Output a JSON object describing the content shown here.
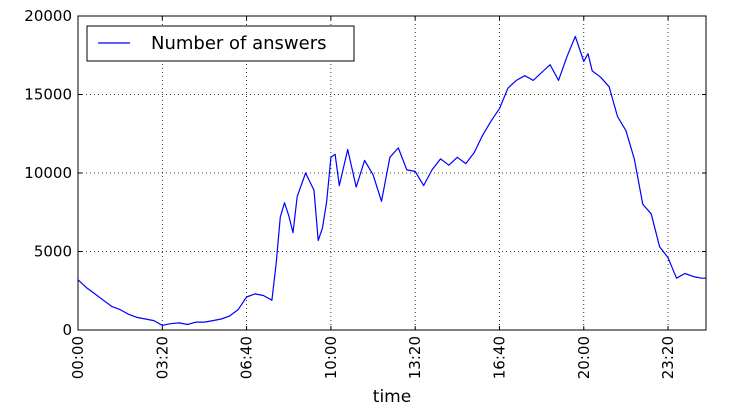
{
  "chart_data": {
    "type": "line",
    "title": "",
    "xlabel": "time",
    "ylabel": "",
    "xlim": [
      "00:00",
      "24:50"
    ],
    "ylim": [
      0,
      20000
    ],
    "x_ticks": [
      "00:00",
      "03:20",
      "06:40",
      "10:00",
      "13:20",
      "16:40",
      "20:00",
      "23:20"
    ],
    "y_ticks": [
      0,
      5000,
      10000,
      15000,
      20000
    ],
    "grid": true,
    "legend": {
      "position": "top-left",
      "entries": [
        "Number of answers"
      ]
    },
    "series": [
      {
        "name": "Number of answers",
        "color": "#0000ff",
        "x": [
          "00:00",
          "00:20",
          "00:40",
          "01:00",
          "01:20",
          "01:40",
          "02:00",
          "02:20",
          "02:40",
          "03:00",
          "03:20",
          "03:40",
          "04:00",
          "04:20",
          "04:40",
          "05:00",
          "05:20",
          "05:40",
          "06:00",
          "06:20",
          "06:40",
          "07:00",
          "07:20",
          "07:40",
          "07:50",
          "08:00",
          "08:10",
          "08:20",
          "08:30",
          "08:40",
          "09:00",
          "09:20",
          "09:30",
          "09:40",
          "09:50",
          "10:00",
          "10:10",
          "10:20",
          "10:40",
          "11:00",
          "11:20",
          "11:40",
          "12:00",
          "12:20",
          "12:40",
          "13:00",
          "13:20",
          "13:40",
          "14:00",
          "14:20",
          "14:40",
          "15:00",
          "15:20",
          "15:40",
          "16:00",
          "16:20",
          "16:40",
          "17:00",
          "17:20",
          "17:40",
          "18:00",
          "18:20",
          "18:40",
          "19:00",
          "19:20",
          "19:40",
          "20:00",
          "20:10",
          "20:20",
          "20:40",
          "21:00",
          "21:20",
          "21:40",
          "22:00",
          "22:20",
          "22:40",
          "23:00",
          "23:20",
          "23:40",
          "24:00",
          "24:20",
          "24:40",
          "24:50"
        ],
        "y": [
          3200,
          2700,
          2300,
          1900,
          1500,
          1300,
          1000,
          800,
          700,
          600,
          300,
          400,
          450,
          350,
          500,
          500,
          600,
          700,
          900,
          1300,
          2100,
          2300,
          2200,
          1900,
          4200,
          7200,
          8100,
          7300,
          6200,
          8500,
          10000,
          8900,
          5700,
          6500,
          8200,
          11000,
          11200,
          9200,
          11500,
          9100,
          10800,
          9900,
          8200,
          11000,
          11600,
          10200,
          10100,
          9200,
          10200,
          10900,
          10500,
          11000,
          10600,
          11300,
          12400,
          13300,
          14100,
          15400,
          15900,
          16200,
          15900,
          16400,
          16900,
          15900,
          17400,
          18700,
          17100,
          17600,
          16500,
          16100,
          15500,
          13600,
          12700,
          10900,
          8000,
          7400,
          5300,
          4600,
          3300,
          3600,
          3400,
          3300,
          3300
        ]
      }
    ]
  }
}
